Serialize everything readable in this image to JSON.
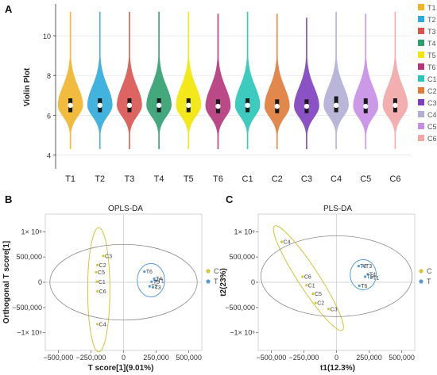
{
  "panels": {
    "a_label": "A",
    "b_label": "B",
    "c_label": "C"
  },
  "violin": {
    "ylabel": "Violin Plot",
    "y_ticks": [
      "4",
      "6",
      "8",
      "10"
    ],
    "ylim": [
      3.3,
      11.6
    ]
  },
  "opls": {
    "title": "OPLS-DA",
    "xlabel": "T score[1](9.01%)",
    "ylabel": "Orthogonal T score[1]",
    "x_ticks": [
      "−500,000",
      "−250,000",
      "0",
      "250,000",
      "500,000"
    ],
    "y_ticks": [
      "1× 10⁶",
      "500,000",
      "0",
      "−500,000",
      "−1× 10⁶"
    ]
  },
  "pls": {
    "title": "PLS-DA",
    "xlabel": "t1(12.3%)",
    "ylabel": "t2(23%)",
    "x_ticks": [
      "−500,000",
      "−250,000",
      "0",
      "250,000",
      "500,000"
    ],
    "y_ticks": [
      "1× 10⁶",
      "500,000",
      "0",
      "−500,000",
      "−1× 10⁶"
    ]
  },
  "chart_data": [
    {
      "type": "violin",
      "ylabel": "Violin Plot",
      "ylim": [
        3.3,
        11.6
      ],
      "categories": [
        "T1",
        "T2",
        "T3",
        "T4",
        "T5",
        "T6",
        "C1",
        "C2",
        "C3",
        "C4",
        "C5",
        "C6"
      ],
      "colors": [
        "#f0b429",
        "#2eaadc",
        "#d9534f",
        "#2f9e6e",
        "#f2e600",
        "#b5357a",
        "#29c5b8",
        "#e07b39",
        "#7e3fbf",
        "#b3aed6",
        "#c58ee6",
        "#f2a6a6"
      ],
      "series": [
        {
          "name": "T1",
          "min": 4.3,
          "q1": 6.15,
          "median": 6.5,
          "q3": 6.85,
          "max": 11.2,
          "mode": 6.5
        },
        {
          "name": "T2",
          "min": 4.3,
          "q1": 6.15,
          "median": 6.5,
          "q3": 6.85,
          "max": 11.2,
          "mode": 6.5
        },
        {
          "name": "T3",
          "min": 4.3,
          "q1": 6.15,
          "median": 6.5,
          "q3": 6.85,
          "max": 11.2,
          "mode": 6.5
        },
        {
          "name": "T4",
          "min": 4.3,
          "q1": 6.15,
          "median": 6.5,
          "q3": 6.85,
          "max": 11.2,
          "mode": 6.5
        },
        {
          "name": "T5",
          "min": 4.3,
          "q1": 6.15,
          "median": 6.5,
          "q3": 6.85,
          "max": 11.2,
          "mode": 6.5
        },
        {
          "name": "T6",
          "min": 4.3,
          "q1": 6.1,
          "median": 6.45,
          "q3": 6.8,
          "max": 11.1,
          "mode": 6.45
        },
        {
          "name": "C1",
          "min": 4.3,
          "q1": 6.15,
          "median": 6.5,
          "q3": 6.85,
          "max": 11.2,
          "mode": 6.5
        },
        {
          "name": "C2",
          "min": 4.3,
          "q1": 6.1,
          "median": 6.45,
          "q3": 6.8,
          "max": 11.1,
          "mode": 6.45
        },
        {
          "name": "C3",
          "min": 4.3,
          "q1": 6.1,
          "median": 6.45,
          "q3": 6.8,
          "max": 10.9,
          "mode": 6.45
        },
        {
          "name": "C4",
          "min": 4.3,
          "q1": 6.15,
          "median": 6.5,
          "q3": 6.95,
          "max": 11.2,
          "mode": 6.5
        },
        {
          "name": "C5",
          "min": 4.3,
          "q1": 6.1,
          "median": 6.45,
          "q3": 6.85,
          "max": 11.1,
          "mode": 6.45
        },
        {
          "name": "C6",
          "min": 4.3,
          "q1": 6.15,
          "median": 6.5,
          "q3": 6.85,
          "max": 11.2,
          "mode": 6.5
        }
      ],
      "legend": [
        "T1",
        "T2",
        "T3",
        "T4",
        "T5",
        "T6",
        "C1",
        "C2",
        "C3",
        "C4",
        "C5",
        "C6"
      ]
    },
    {
      "type": "scatter",
      "title": "OPLS-DA",
      "xlabel": "T score[1](9.01%)",
      "ylabel": "Orthogonal T score[1]",
      "xlim": [
        -600000,
        600000
      ],
      "ylim": [
        -1350000,
        1350000
      ],
      "legend": [
        {
          "name": "C",
          "color": "#d4c53a"
        },
        {
          "name": "T",
          "color": "#5b9bd5"
        }
      ],
      "points": [
        {
          "label": "C3",
          "group": "C",
          "x": -155000,
          "y": 520000
        },
        {
          "label": "C2",
          "group": "C",
          "x": -200000,
          "y": 340000
        },
        {
          "label": "C5",
          "group": "C",
          "x": -210000,
          "y": 200000
        },
        {
          "label": "C1",
          "group": "C",
          "x": -205000,
          "y": 10000
        },
        {
          "label": "C6",
          "group": "C",
          "x": -200000,
          "y": -180000
        },
        {
          "label": "C4",
          "group": "C",
          "x": -200000,
          "y": -830000
        },
        {
          "label": "T6",
          "group": "T",
          "x": 160000,
          "y": 210000
        },
        {
          "label": "T4",
          "group": "T",
          "x": 235000,
          "y": 70000
        },
        {
          "label": "T1",
          "group": "T",
          "x": 250000,
          "y": 30000
        },
        {
          "label": "T5",
          "group": "T",
          "x": 215000,
          "y": 10000
        },
        {
          "label": "T2",
          "group": "T",
          "x": 200000,
          "y": -80000
        },
        {
          "label": "T3",
          "group": "T",
          "x": 225000,
          "y": -100000
        }
      ],
      "ellipses": [
        {
          "group": "C",
          "cx": -190000,
          "cy": -150000,
          "rx": 85000,
          "ry": 1230000
        },
        {
          "group": "T",
          "cx": 210000,
          "cy": 40000,
          "rx": 105000,
          "ry": 330000
        },
        {
          "group": "all",
          "cx": 0,
          "cy": 0,
          "rx": 565000,
          "ry": 750000
        }
      ]
    },
    {
      "type": "scatter",
      "title": "PLS-DA",
      "xlabel": "t1(12.3%)",
      "ylabel": "t2(23%)",
      "xlim": [
        -600000,
        600000
      ],
      "ylim": [
        -1350000,
        1350000
      ],
      "legend": [
        {
          "name": "C",
          "color": "#d4c53a"
        },
        {
          "name": "T",
          "color": "#5b9bd5"
        }
      ],
      "points": [
        {
          "label": "C4",
          "group": "C",
          "x": -420000,
          "y": 800000
        },
        {
          "label": "C6",
          "group": "C",
          "x": -260000,
          "y": 110000
        },
        {
          "label": "C1",
          "group": "C",
          "x": -230000,
          "y": -60000
        },
        {
          "label": "C5",
          "group": "C",
          "x": -180000,
          "y": -230000
        },
        {
          "label": "C2",
          "group": "C",
          "x": -160000,
          "y": -410000
        },
        {
          "label": "C3",
          "group": "C",
          "x": -60000,
          "y": -530000
        },
        {
          "label": "T2",
          "group": "T",
          "x": 170000,
          "y": 320000
        },
        {
          "label": "T3",
          "group": "T",
          "x": 210000,
          "y": 320000
        },
        {
          "label": "T4",
          "group": "T",
          "x": 240000,
          "y": 160000
        },
        {
          "label": "T5",
          "group": "T",
          "x": 220000,
          "y": 110000
        },
        {
          "label": "T1",
          "group": "T",
          "x": 265000,
          "y": 90000
        },
        {
          "label": "T6",
          "group": "T",
          "x": 175000,
          "y": -70000
        }
      ],
      "ellipses": [
        {
          "group": "C",
          "cx": -215000,
          "cy": 80000,
          "rx": 80000,
          "ry": 1230000,
          "rotate": -33
        },
        {
          "group": "T",
          "cx": 205000,
          "cy": 150000,
          "rx": 100000,
          "ry": 300000
        },
        {
          "group": "all",
          "cx": 0,
          "cy": 120000,
          "rx": 580000,
          "ry": 800000
        }
      ]
    }
  ]
}
